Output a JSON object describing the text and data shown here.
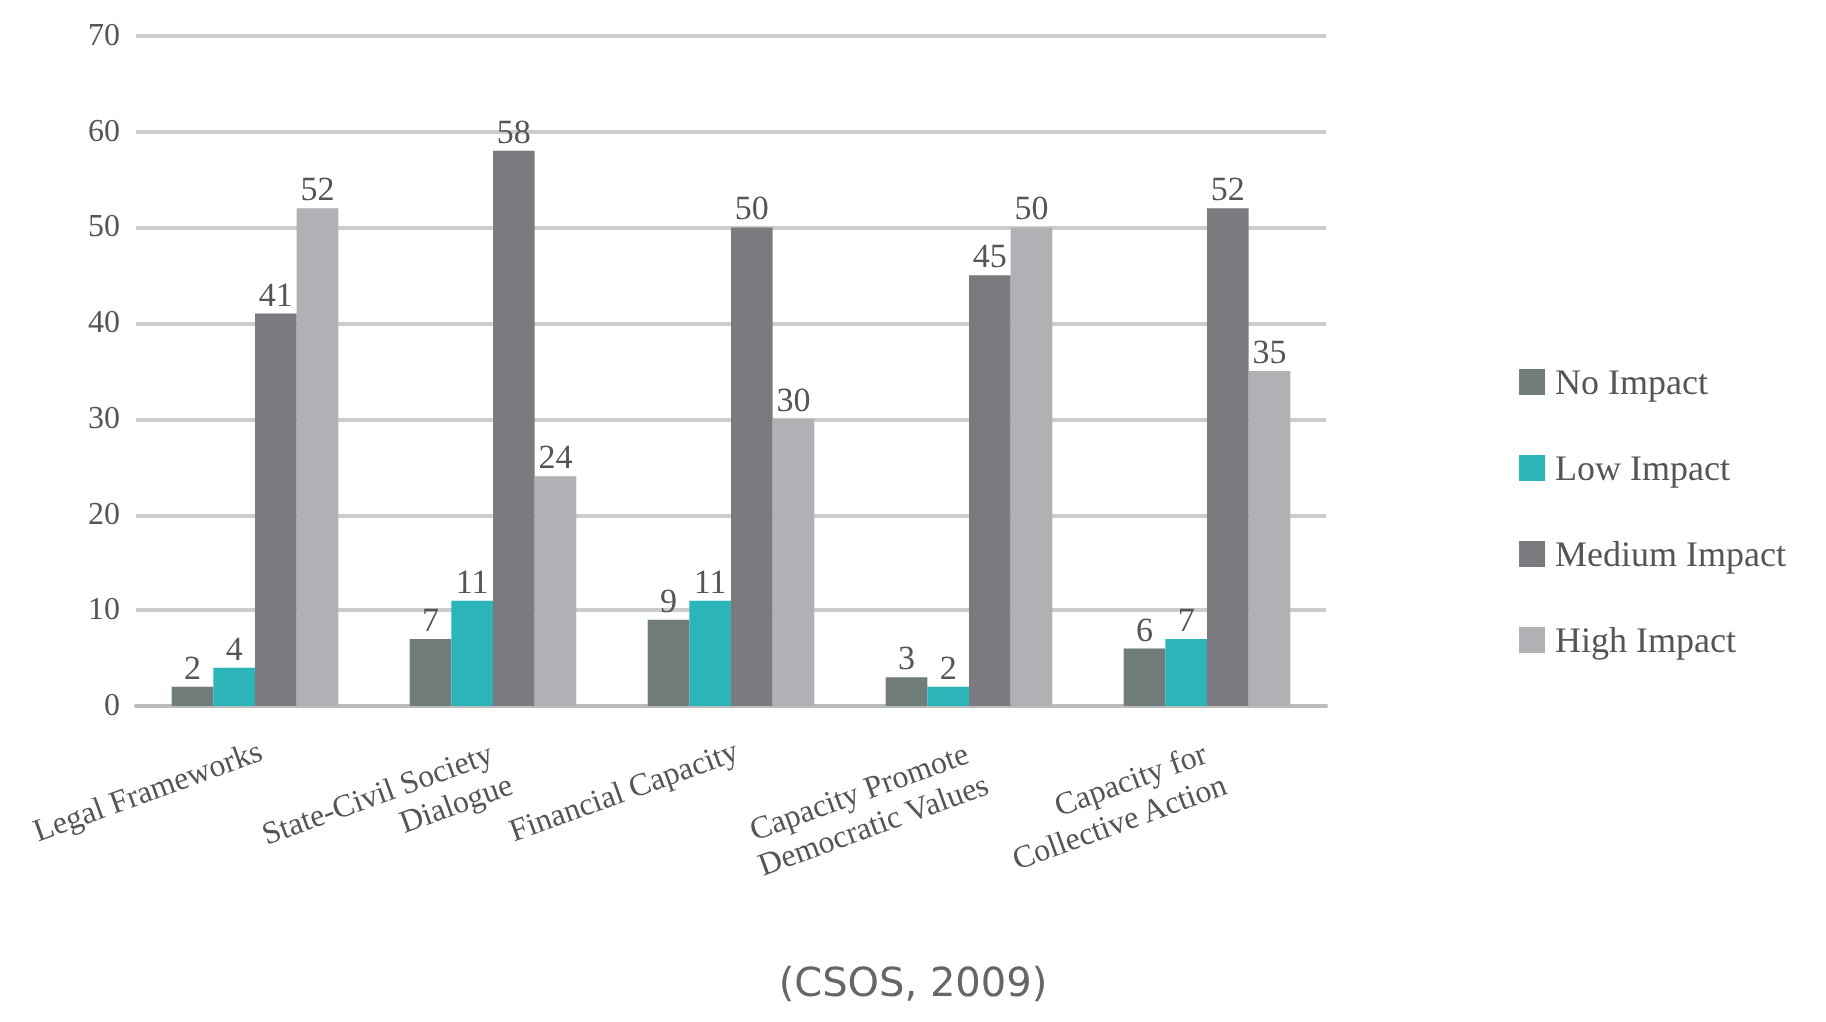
{
  "chart_data": {
    "type": "bar",
    "categories": [
      "Legal Frameworks",
      "State-Civil Society Dialogue",
      "Financial Capacity",
      "Capacity Promote Democratic Values",
      "Capacity for Collective Action"
    ],
    "series": [
      {
        "name": "No Impact",
        "color": "#717d7a",
        "values": [
          2,
          7,
          9,
          3,
          6
        ]
      },
      {
        "name": "Low Impact",
        "color": "#2bb5b8",
        "values": [
          4,
          11,
          11,
          2,
          7
        ]
      },
      {
        "name": "Medium Impact",
        "color": "#7b7a7f",
        "values": [
          41,
          58,
          50,
          45,
          52
        ]
      },
      {
        "name": "High Impact",
        "color": "#b1b0b5",
        "values": [
          52,
          24,
          30,
          50,
          35
        ]
      }
    ],
    "ylim": [
      0,
      70
    ],
    "yticks": [
      0,
      10,
      20,
      30,
      40,
      50,
      60,
      70
    ],
    "grid": "y",
    "legend": "right",
    "data_labels": true,
    "annotations": [
      "(CSOS, 2009)"
    ]
  }
}
